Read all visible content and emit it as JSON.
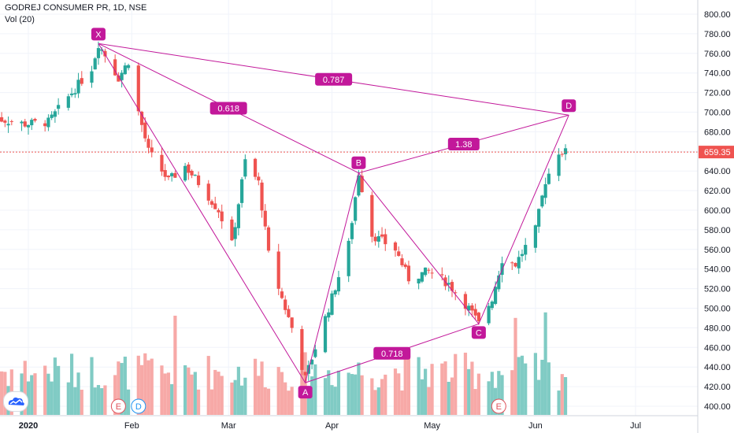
{
  "header": {
    "title": "GODREJ CONSUMER PR, 1D, NSE",
    "volume_label": "Vol (20)"
  },
  "logo_icon": "tradingview-cloud-icon",
  "colors": {
    "up": "#26a69a",
    "down": "#ef5350",
    "pattern": "#c2189a",
    "vol_up": "#80cbc4",
    "vol_down": "#f7a9a7",
    "price_line": "#ef5350"
  },
  "chart_data": {
    "type": "candlestick",
    "symbol": "GODREJ CONSUMER PR",
    "interval": "1D",
    "exchange": "NSE",
    "x_ticks": [
      "2020",
      "Feb",
      "Mar",
      "Apr",
      "May",
      "Jun",
      "Jul"
    ],
    "y_ticks": [
      400,
      420,
      440,
      460,
      480,
      500,
      520,
      540,
      560,
      580,
      600,
      620,
      640,
      660,
      680,
      700,
      720,
      740,
      760,
      780,
      800
    ],
    "y_tick_labels": [
      "400.00",
      "420.00",
      "440.00",
      "460.00",
      "480.00",
      "500.00",
      "520.00",
      "540.00",
      "560.00",
      "580.00",
      "600.00",
      "620.00",
      "640.00",
      "660.00",
      "680.00",
      "700.00",
      "720.00",
      "740.00",
      "760.00",
      "780.00",
      "800.00"
    ],
    "ylim": [
      395,
      810
    ],
    "last_price": 659.35,
    "last_price_label": "659.35",
    "close_path": [
      {
        "date": "2019-12-20",
        "close": 695
      },
      {
        "date": "2019-12-31",
        "close": 688
      },
      {
        "date": "2020-01-07",
        "close": 690
      },
      {
        "date": "2020-01-14",
        "close": 720
      },
      {
        "date": "2020-01-20",
        "close": 745
      },
      {
        "date": "2020-01-22",
        "close": 770
      },
      {
        "date": "2020-01-28",
        "close": 735
      },
      {
        "date": "2020-01-31",
        "close": 752
      },
      {
        "date": "2020-02-03",
        "close": 700
      },
      {
        "date": "2020-02-06",
        "close": 660
      },
      {
        "date": "2020-02-12",
        "close": 630
      },
      {
        "date": "2020-02-17",
        "close": 645
      },
      {
        "date": "2020-02-21",
        "close": 628
      },
      {
        "date": "2020-02-27",
        "close": 600
      },
      {
        "date": "2020-03-02",
        "close": 565
      },
      {
        "date": "2020-03-06",
        "close": 650
      },
      {
        "date": "2020-03-10",
        "close": 628
      },
      {
        "date": "2020-03-13",
        "close": 555
      },
      {
        "date": "2020-03-17",
        "close": 510
      },
      {
        "date": "2020-03-20",
        "close": 480
      },
      {
        "date": "2020-03-24",
        "close": 428
      },
      {
        "date": "2020-03-27",
        "close": 460
      },
      {
        "date": "2020-03-31",
        "close": 500
      },
      {
        "date": "2020-04-06",
        "close": 565
      },
      {
        "date": "2020-04-09",
        "close": 638
      },
      {
        "date": "2020-04-13",
        "close": 575
      },
      {
        "date": "2020-04-20",
        "close": 560
      },
      {
        "date": "2020-04-24",
        "close": 530
      },
      {
        "date": "2020-04-30",
        "close": 538
      },
      {
        "date": "2020-05-06",
        "close": 525
      },
      {
        "date": "2020-05-12",
        "close": 500
      },
      {
        "date": "2020-05-15",
        "close": 484
      },
      {
        "date": "2020-05-19",
        "close": 510
      },
      {
        "date": "2020-05-22",
        "close": 550
      },
      {
        "date": "2020-05-26",
        "close": 545
      },
      {
        "date": "2020-06-01",
        "close": 580
      },
      {
        "date": "2020-06-04",
        "close": 630
      },
      {
        "date": "2020-06-08",
        "close": 660
      },
      {
        "date": "2020-06-10",
        "close": 659.35
      }
    ],
    "earnings_markers": [
      {
        "date": "2020-01-28",
        "label": "E"
      },
      {
        "date": "2020-05-21",
        "label": "E"
      }
    ],
    "dividend_markers": [
      {
        "date": "2020-02-03",
        "label": "D"
      }
    ],
    "volume_spikes": [
      {
        "date": "2020-02-14",
        "level": 0.9
      },
      {
        "date": "2020-05-26",
        "level": 0.88
      },
      {
        "date": "2020-06-04",
        "level": 0.93
      }
    ],
    "pattern": {
      "points": [
        {
          "name": "X",
          "date": "2020-01-22",
          "price": 770
        },
        {
          "name": "A",
          "date": "2020-03-24",
          "price": 424
        },
        {
          "name": "B",
          "date": "2020-04-09",
          "price": 638
        },
        {
          "name": "C",
          "date": "2020-05-15",
          "price": 484
        },
        {
          "name": "D",
          "date": "2020-06-11",
          "price": 697
        }
      ],
      "ratios": [
        {
          "from": "X",
          "to": "B",
          "label": "0.618"
        },
        {
          "from": "X",
          "to": "D",
          "label": "0.787"
        },
        {
          "from": "B",
          "to": "D",
          "label": "1.38"
        },
        {
          "from": "A",
          "to": "C",
          "label": "0.718"
        }
      ]
    }
  }
}
